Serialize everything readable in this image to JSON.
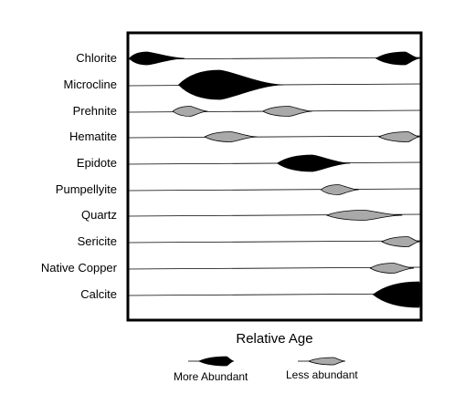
{
  "chart_data": {
    "type": "range-diagram",
    "xlabel": "Relative Age",
    "minerals": [
      {
        "name": "Chlorite",
        "occurrences": [
          {
            "start": 0.0,
            "end": 0.19,
            "peak": 0.06,
            "abundance": "more"
          },
          {
            "start": 0.85,
            "end": 1.0,
            "peak": 0.95,
            "abundance": "more"
          }
        ]
      },
      {
        "name": "Microcline",
        "occurrences": [
          {
            "start": 0.17,
            "end": 0.53,
            "peak": 0.31,
            "abundance": "more"
          }
        ]
      },
      {
        "name": "Prehnite",
        "occurrences": [
          {
            "start": 0.15,
            "end": 0.27,
            "peak": 0.21,
            "abundance": "less"
          },
          {
            "start": 0.46,
            "end": 0.63,
            "peak": 0.55,
            "abundance": "less"
          }
        ]
      },
      {
        "name": "Hematite",
        "occurrences": [
          {
            "start": 0.26,
            "end": 0.44,
            "peak": 0.35,
            "abundance": "less"
          },
          {
            "start": 0.86,
            "end": 1.0,
            "peak": 0.96,
            "abundance": "less"
          }
        ]
      },
      {
        "name": "Epidote",
        "occurrences": [
          {
            "start": 0.51,
            "end": 0.76,
            "peak": 0.63,
            "abundance": "more"
          }
        ]
      },
      {
        "name": "Pumpellyite",
        "occurrences": [
          {
            "start": 0.66,
            "end": 0.79,
            "peak": 0.72,
            "abundance": "less"
          }
        ]
      },
      {
        "name": "Quartz",
        "occurrences": [
          {
            "start": 0.68,
            "end": 0.94,
            "peak": 0.81,
            "abundance": "less"
          }
        ]
      },
      {
        "name": "Sericite",
        "occurrences": [
          {
            "start": 0.87,
            "end": 1.0,
            "peak": 0.96,
            "abundance": "less"
          }
        ]
      },
      {
        "name": "Native Copper",
        "occurrences": [
          {
            "start": 0.83,
            "end": 0.98,
            "peak": 0.91,
            "abundance": "less"
          }
        ]
      },
      {
        "name": "Calcite",
        "occurrences": [
          {
            "start": 0.84,
            "end": 1.0,
            "peak": 1.0,
            "abundance": "more"
          }
        ]
      }
    ]
  },
  "legend": {
    "more": {
      "label": "More Abundant",
      "color": "#000000"
    },
    "less": {
      "label": "Less abundant",
      "color": "#a9a9a9"
    }
  }
}
